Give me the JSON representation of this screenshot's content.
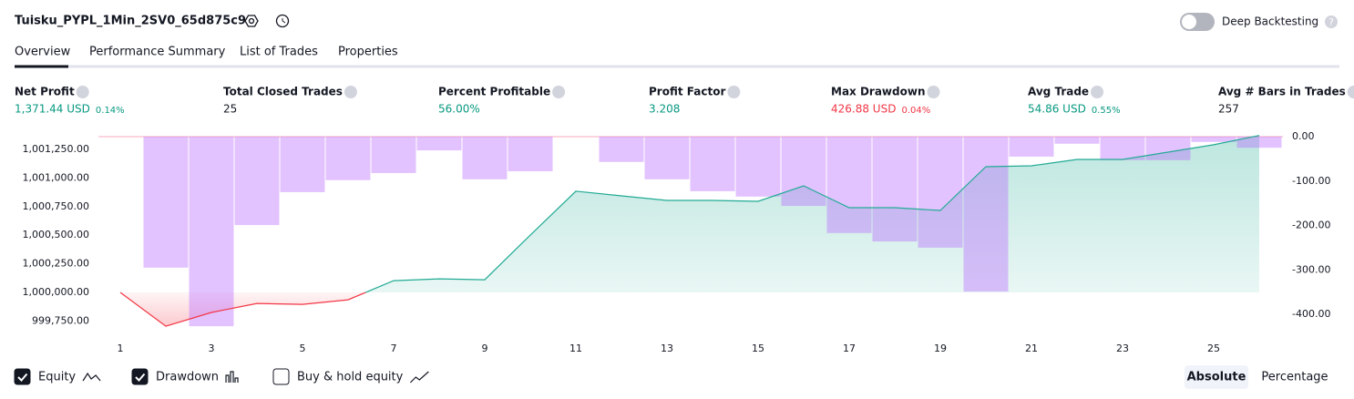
{
  "header": {
    "title": "Tuisku_PYPL_1Min_2SV0_65d875c9",
    "toggle_label": "Deep Backtesting"
  },
  "tabs": [
    "Overview",
    "Performance Summary",
    "List of Trades",
    "Properties"
  ],
  "stats": [
    {
      "label": "Net Profit",
      "value": "1,371.44 USD",
      "pct": "0.14%",
      "color": "#089981"
    },
    {
      "label": "Total Closed Trades",
      "value": "25",
      "color": "#131722"
    },
    {
      "label": "Percent Profitable",
      "value": "56.00%",
      "color": "#089981"
    },
    {
      "label": "Profit Factor",
      "value": "3.208",
      "color": "#089981"
    },
    {
      "label": "Max Drawdown",
      "value": "426.88 USD",
      "pct": "0.04%",
      "color": "#f23645"
    },
    {
      "label": "Avg Trade",
      "value": "54.86 USD",
      "pct": "0.55%",
      "color": "#089981"
    },
    {
      "label": "Avg # Bars in Trades",
      "value": "257",
      "color": "#131722"
    }
  ],
  "chart_data": {
    "type": "bar-line",
    "categories": [
      1,
      null,
      3,
      null,
      5,
      null,
      7,
      null,
      9,
      null,
      11,
      null,
      13,
      null,
      15,
      null,
      17,
      null,
      19,
      null,
      21,
      null,
      23,
      null,
      25,
      null
    ],
    "series": [
      {
        "name": "Equity",
        "type": "line",
        "color": "#22ab94",
        "values": [
          1000000,
          999705,
          999825,
          999904,
          999896,
          999936,
          1000103,
          1000119,
          1000111,
          1000501,
          1000884,
          1000844,
          1000804,
          1000804,
          1000796,
          1000931,
          1000740,
          1000740,
          1000716,
          1001098,
          1001106,
          1001162,
          1001162,
          1001226,
          1001290,
          1001371
        ]
      },
      {
        "name": "Drawdown",
        "type": "bar",
        "axis": "y2",
        "color": "#ba68ff",
        "values": [
          0,
          -295,
          -426.88,
          -199,
          -125,
          -98,
          -82,
          -31,
          -96,
          -78,
          0,
          -57,
          -96,
          -123,
          -135,
          -156,
          -217,
          -236,
          -250,
          -349,
          -45,
          -16,
          -53,
          -53,
          -12,
          -25
        ]
      }
    ],
    "ylim": [
      999650,
      1001361
    ],
    "yticks": [
      {
        "value": 999750,
        "label": "999,750.00"
      },
      {
        "value": 1000000,
        "label": "1,000,000.00"
      },
      {
        "value": 1000250,
        "label": "1,000,250.00"
      },
      {
        "value": 1000500,
        "label": "1,000,500.00"
      },
      {
        "value": 1000750,
        "label": "1,000,750.00"
      },
      {
        "value": 1001000,
        "label": "1,001,000.00"
      },
      {
        "value": 1001250,
        "label": "1,001,250.00"
      }
    ],
    "y2lim": [
      -441,
      0
    ],
    "y2ticks": [
      {
        "value": 0,
        "label": "0.00"
      },
      {
        "value": -100,
        "label": "-100.00"
      },
      {
        "value": -200,
        "label": "-200.00"
      },
      {
        "value": -300,
        "label": "-300.00"
      },
      {
        "value": -400,
        "label": "-400.00"
      }
    ]
  },
  "legend": [
    {
      "name": "Equity",
      "checked": true
    },
    {
      "name": "Drawdown",
      "checked": true
    },
    {
      "name": "Buy & hold equity",
      "checked": false
    }
  ],
  "buttons": [
    "Absolute",
    "Percentage"
  ]
}
